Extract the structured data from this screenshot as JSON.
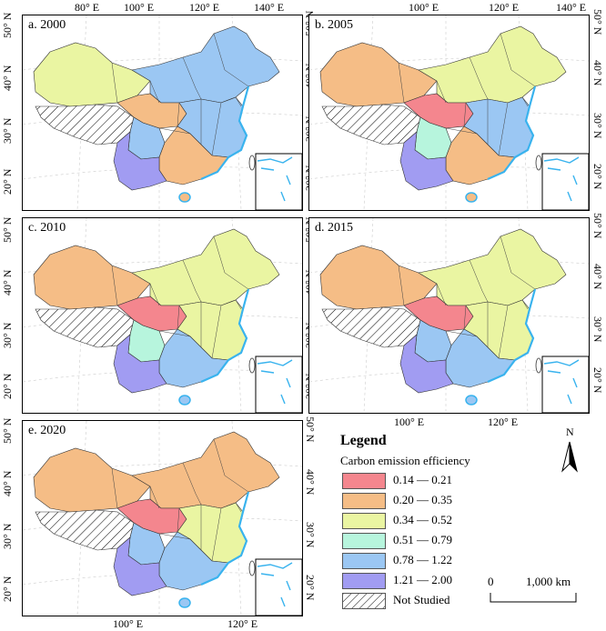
{
  "figure": {
    "panels": [
      {
        "label": "a. 2000"
      },
      {
        "label": "b. 2005"
      },
      {
        "label": "c. 2010"
      },
      {
        "label": "d. 2015"
      },
      {
        "label": "e. 2020"
      }
    ],
    "top_ticks": [
      "80° E",
      "100° E",
      "120° E",
      "140° E"
    ],
    "top_ticks_right": [
      "100° E",
      "120° E",
      "140° E"
    ],
    "mid_bottom_ticks": [
      "100° E",
      "120° E"
    ],
    "bottom_ticks": [
      "100° E",
      "120° E"
    ],
    "left_ticks": [
      "50° N",
      "40° N",
      "30° N",
      "20° N"
    ],
    "right_ticks": [
      "50° N",
      "40° N",
      "30° N",
      "20° N"
    ]
  },
  "legend": {
    "title": "Legend",
    "subtitle": "Carbon emission efficiency",
    "classes": [
      {
        "label": "0.14 — 0.21",
        "color": "#f4868e"
      },
      {
        "label": "0.20 — 0.35",
        "color": "#f5bd86"
      },
      {
        "label": "0.34 — 0.52",
        "color": "#eaf5a2"
      },
      {
        "label": "0.51 — 0.79",
        "color": "#b7f5dd"
      },
      {
        "label": "0.78 — 1.22",
        "color": "#9bc7f3"
      },
      {
        "label": "1.21 — 2.00",
        "color": "#a19cf2"
      }
    ],
    "not_studied": "Not Studied",
    "scale_zero": "0",
    "scale_km": "1,000 km",
    "north": "N"
  },
  "colors": {
    "c1": "#f4868e",
    "c2": "#f5bd86",
    "c3": "#eaf5a2",
    "c4": "#b7f5dd",
    "c5": "#9bc7f3",
    "c6": "#a19cf2",
    "coast": "#39b3ee"
  },
  "panel_regions": [
    {
      "north": "c5",
      "northwest": "c3",
      "tibet": "hatch",
      "central": "c2",
      "east": "c5",
      "south": "c2",
      "southwest": "c6",
      "sichuan": "c5"
    },
    {
      "north": "c3",
      "northwest": "c2",
      "tibet": "hatch",
      "central": "c1",
      "east": "c5",
      "south": "c2",
      "southwest": "c6",
      "sichuan": "c4"
    },
    {
      "north": "c3",
      "northwest": "c2",
      "tibet": "hatch",
      "central": "c1",
      "east": "c3",
      "south": "c5",
      "southwest": "c6",
      "sichuan": "c4"
    },
    {
      "north": "c3",
      "northwest": "c2",
      "tibet": "hatch",
      "central": "c1",
      "east": "c3",
      "south": "c5",
      "southwest": "c6",
      "sichuan": "c5"
    },
    {
      "north": "c2",
      "northwest": "c2",
      "tibet": "hatch",
      "central": "c1",
      "east": "c3",
      "south": "c5",
      "southwest": "c6",
      "sichuan": "c5"
    }
  ]
}
